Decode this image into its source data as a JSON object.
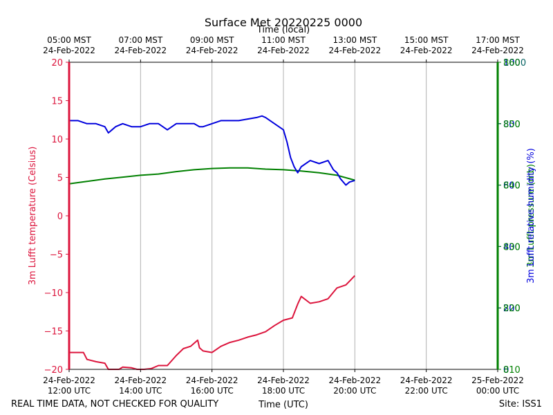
{
  "chart_data": {
    "type": "line",
    "title": "Surface Met 20220225 0000",
    "top_axis_title": "Time (local)",
    "xlabel": "Time (UTC)",
    "ylabel_left": "3m Lufft temperature (Celsius)",
    "ylabel_right_pressure": "3m Lufft pressure (mb)",
    "ylabel_right_humidity": "3m Lufft relative humidity (%)",
    "footer_left": "REAL TIME DATA, NOT CHECKED FOR QUALITY",
    "footer_right": "Site: ISS1",
    "x_range_hours": [
      12,
      24
    ],
    "bottom_ticks": [
      {
        "h": 12,
        "l1": "24-Feb-2022",
        "l2": "12:00 UTC"
      },
      {
        "h": 14,
        "l1": "24-Feb-2022",
        "l2": "14:00 UTC"
      },
      {
        "h": 16,
        "l1": "24-Feb-2022",
        "l2": "16:00 UTC"
      },
      {
        "h": 18,
        "l1": "24-Feb-2022",
        "l2": "18:00 UTC"
      },
      {
        "h": 20,
        "l1": "24-Feb-2022",
        "l2": "20:00 UTC"
      },
      {
        "h": 22,
        "l1": "24-Feb-2022",
        "l2": "22:00 UTC"
      },
      {
        "h": 24,
        "l1": "25-Feb-2022",
        "l2": "00:00 UTC"
      }
    ],
    "top_ticks": [
      {
        "h": 12,
        "l1": "05:00 MST",
        "l2": "24-Feb-2022"
      },
      {
        "h": 14,
        "l1": "07:00 MST",
        "l2": "24-Feb-2022"
      },
      {
        "h": 16,
        "l1": "09:00 MST",
        "l2": "24-Feb-2022"
      },
      {
        "h": 18,
        "l1": "11:00 MST",
        "l2": "24-Feb-2022"
      },
      {
        "h": 20,
        "l1": "13:00 MST",
        "l2": "24-Feb-2022"
      },
      {
        "h": 22,
        "l1": "15:00 MST",
        "l2": "24-Feb-2022"
      },
      {
        "h": 24,
        "l1": "17:00 MST",
        "l2": "24-Feb-2022"
      }
    ],
    "y_left": {
      "range": [
        -20,
        20
      ],
      "ticks": [
        -20,
        -15,
        -10,
        -5,
        0,
        5,
        10,
        15,
        20
      ],
      "color": "#dc143c"
    },
    "y_right_pressure": {
      "range": [
        810,
        860
      ],
      "ticks": [
        810,
        820,
        830,
        840,
        850,
        860
      ],
      "color": "#008000"
    },
    "y_right_humidity": {
      "range": [
        0,
        100
      ],
      "ticks": [
        0,
        20,
        40,
        60,
        80,
        100
      ],
      "color": "#0000dd"
    },
    "y_right_extra": {
      "range": [
        0,
        1000
      ],
      "ticks": [
        0,
        200,
        400,
        600,
        800,
        1000
      ],
      "color": "#006060"
    },
    "series": [
      {
        "name": "3m Lufft temperature",
        "axis": "left",
        "color": "#dc143c",
        "x": [
          12.0,
          12.25,
          12.4,
          12.5,
          12.75,
          13.0,
          13.1,
          13.4,
          13.5,
          13.75,
          13.9,
          14.1,
          14.3,
          14.5,
          14.75,
          15.0,
          15.2,
          15.4,
          15.6,
          15.65,
          15.75,
          16.0,
          16.25,
          16.5,
          16.75,
          17.0,
          17.25,
          17.5,
          17.75,
          18.0,
          18.25,
          18.4,
          18.5,
          18.75,
          19.0,
          19.25,
          19.5,
          19.75,
          20.0
        ],
        "y": [
          -17.8,
          -17.8,
          -17.8,
          -18.7,
          -19.0,
          -19.2,
          -20.3,
          -20.1,
          -19.7,
          -19.8,
          -20.5,
          -20.4,
          -19.9,
          -19.5,
          -19.5,
          -18.2,
          -17.3,
          -17.0,
          -16.2,
          -17.2,
          -17.6,
          -17.8,
          -17.0,
          -16.5,
          -16.2,
          -15.8,
          -15.5,
          -15.1,
          -14.3,
          -13.6,
          -13.3,
          -11.5,
          -10.5,
          -11.4,
          -11.2,
          -10.8,
          -9.4,
          -9.0,
          -7.8
        ]
      },
      {
        "name": "3m Lufft pressure",
        "axis": "right_pressure",
        "color": "#008000",
        "x": [
          12.0,
          12.5,
          13.0,
          13.5,
          14.0,
          14.5,
          15.0,
          15.5,
          16.0,
          16.5,
          17.0,
          17.5,
          18.0,
          18.5,
          19.0,
          19.5,
          20.0
        ],
        "y": [
          840.2,
          840.6,
          841.0,
          841.3,
          841.6,
          841.8,
          842.2,
          842.5,
          842.7,
          842.8,
          842.8,
          842.6,
          842.5,
          842.3,
          842.0,
          841.6,
          840.8
        ]
      },
      {
        "name": "3m Lufft relative humidity",
        "axis": "right_humidity",
        "color": "#0000dd",
        "x": [
          12.0,
          12.25,
          12.5,
          12.75,
          13.0,
          13.1,
          13.2,
          13.3,
          13.5,
          13.75,
          14.0,
          14.25,
          14.5,
          14.75,
          15.0,
          15.25,
          15.5,
          15.65,
          15.75,
          16.0,
          16.25,
          16.5,
          16.75,
          17.0,
          17.25,
          17.4,
          17.5,
          17.75,
          18.0,
          18.1,
          18.2,
          18.3,
          18.4,
          18.5,
          18.75,
          19.0,
          19.25,
          19.4,
          19.5,
          19.6,
          19.75,
          19.85,
          20.0
        ],
        "y": [
          81.0,
          81.0,
          80.0,
          80.0,
          79.0,
          77.0,
          78.0,
          79.0,
          80.0,
          79.0,
          79.0,
          80.0,
          80.0,
          78.0,
          80.0,
          80.0,
          80.0,
          79.0,
          79.0,
          80.0,
          81.0,
          81.0,
          81.0,
          81.5,
          82.0,
          82.5,
          82.0,
          80.0,
          78.0,
          74.0,
          69.0,
          66.0,
          64.0,
          66.0,
          68.0,
          67.0,
          68.0,
          65.0,
          64.0,
          62.0,
          60.0,
          61.0,
          61.5
        ]
      }
    ]
  }
}
